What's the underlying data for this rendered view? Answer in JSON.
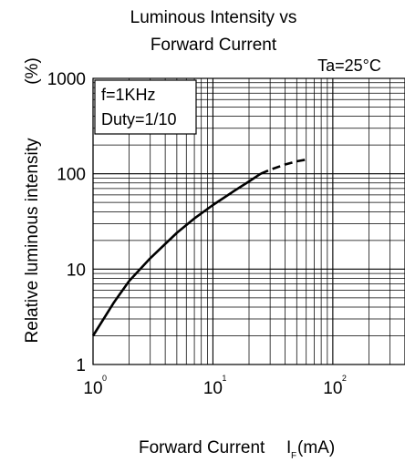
{
  "chart_data": {
    "type": "line",
    "title_lines": [
      "Luminous Intensity vs",
      "Forward Current"
    ],
    "condition": "Ta=25°C",
    "annotation_lines": [
      "f=1KHz",
      "Duty=1/10"
    ],
    "ylabel": "Relative luminous intensity",
    "ylabel_unit": "(%)",
    "xlabel": "Forward Current",
    "xlabel_symbol": "I",
    "xlabel_subscript": "F",
    "xlabel_unit": "(mA)",
    "x_scale": "log",
    "y_scale": "log",
    "xlim": [
      1,
      400
    ],
    "ylim": [
      1,
      1000
    ],
    "grid": true,
    "x_ticks": [
      {
        "value": 1,
        "base": "10",
        "exp": "0"
      },
      {
        "value": 10,
        "base": "10",
        "exp": "1"
      },
      {
        "value": 100,
        "base": "10",
        "exp": "2"
      }
    ],
    "y_ticks": [
      {
        "value": 1,
        "label": "1"
      },
      {
        "value": 10,
        "label": "10"
      },
      {
        "value": 100,
        "label": "100"
      },
      {
        "value": 1000,
        "label": "1000"
      }
    ],
    "series": [
      {
        "style": "solid",
        "x": [
          1,
          1.5,
          2,
          3,
          5,
          7,
          10,
          15,
          20,
          25
        ],
        "y": [
          2,
          4.5,
          7.5,
          13,
          24,
          34,
          47,
          66,
          83,
          100
        ]
      },
      {
        "style": "dashed",
        "x": [
          25,
          30,
          40,
          50,
          63
        ],
        "y": [
          100,
          110,
          125,
          135,
          142
        ]
      }
    ]
  }
}
